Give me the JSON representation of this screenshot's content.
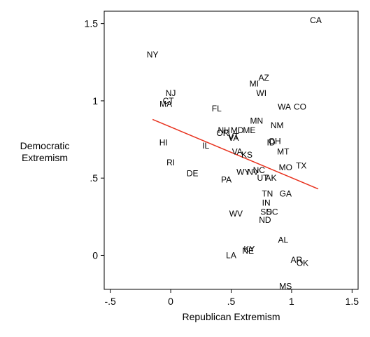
{
  "chart_data": {
    "type": "scatter",
    "xlabel": "Republican Extremism",
    "ylabel": [
      "Democratic",
      "Extremism"
    ],
    "xlim": [
      -0.55,
      1.55
    ],
    "ylim": [
      -0.22,
      1.58
    ],
    "x_ticks": [
      {
        "value": -0.5,
        "label": "-.5"
      },
      {
        "value": 0,
        "label": "0"
      },
      {
        "value": 0.5,
        "label": ".5"
      },
      {
        "value": 1,
        "label": "1"
      },
      {
        "value": 1.5,
        "label": "1.5"
      }
    ],
    "y_ticks": [
      {
        "value": 0,
        "label": "0"
      },
      {
        "value": 0.5,
        "label": ".5"
      },
      {
        "value": 1,
        "label": "1"
      },
      {
        "value": 1.5,
        "label": "1.5"
      }
    ],
    "grid": false,
    "points": [
      {
        "label": "CA",
        "x": 1.2,
        "y": 1.52
      },
      {
        "label": "NY",
        "x": -0.15,
        "y": 1.3
      },
      {
        "label": "AZ",
        "x": 0.77,
        "y": 1.15
      },
      {
        "label": "MI",
        "x": 0.69,
        "y": 1.11
      },
      {
        "label": "WI",
        "x": 0.75,
        "y": 1.05
      },
      {
        "label": "NJ",
        "x": 0,
        "y": 1.05
      },
      {
        "label": "CT",
        "x": -0.02,
        "y": 1.0
      },
      {
        "label": "MA",
        "x": -0.04,
        "y": 0.98
      },
      {
        "label": "WA",
        "x": 0.94,
        "y": 0.96
      },
      {
        "label": "CO",
        "x": 1.07,
        "y": 0.96
      },
      {
        "label": "FL",
        "x": 0.38,
        "y": 0.95
      },
      {
        "label": "MN",
        "x": 0.71,
        "y": 0.87
      },
      {
        "label": "NM",
        "x": 0.88,
        "y": 0.84
      },
      {
        "label": "NH",
        "x": 0.44,
        "y": 0.81
      },
      {
        "label": "MD",
        "x": 0.55,
        "y": 0.81
      },
      {
        "label": "ME",
        "x": 0.65,
        "y": 0.81
      },
      {
        "label": "OR",
        "x": 0.43,
        "y": 0.79
      },
      {
        "label": "VT",
        "x": 0.52,
        "y": 0.77
      },
      {
        "label": "VA",
        "x": 0.52,
        "y": 0.76
      },
      {
        "label": "OH",
        "x": 0.86,
        "y": 0.74
      },
      {
        "label": "ID",
        "x": 0.83,
        "y": 0.73
      },
      {
        "label": "HI",
        "x": -0.06,
        "y": 0.73
      },
      {
        "label": "IL",
        "x": 0.29,
        "y": 0.71
      },
      {
        "label": "MT",
        "x": 0.93,
        "y": 0.67
      },
      {
        "label": "VA",
        "x": 0.55,
        "y": 0.67
      },
      {
        "label": "KS",
        "x": 0.63,
        "y": 0.65
      },
      {
        "label": "RI",
        "x": 0,
        "y": 0.6
      },
      {
        "label": "TX",
        "x": 1.08,
        "y": 0.58
      },
      {
        "label": "MO",
        "x": 0.95,
        "y": 0.57
      },
      {
        "label": "WY",
        "x": 0.6,
        "y": 0.54
      },
      {
        "label": "NV",
        "x": 0.68,
        "y": 0.54
      },
      {
        "label": "NC",
        "x": 0.73,
        "y": 0.55
      },
      {
        "label": "DE",
        "x": 0.18,
        "y": 0.53
      },
      {
        "label": "PA",
        "x": 0.46,
        "y": 0.49
      },
      {
        "label": "UT",
        "x": 0.76,
        "y": 0.5
      },
      {
        "label": "AK",
        "x": 0.83,
        "y": 0.5
      },
      {
        "label": "TN",
        "x": 0.8,
        "y": 0.4
      },
      {
        "label": "GA",
        "x": 0.95,
        "y": 0.4
      },
      {
        "label": "IN",
        "x": 0.79,
        "y": 0.34
      },
      {
        "label": "SD",
        "x": 0.79,
        "y": 0.28
      },
      {
        "label": "SC",
        "x": 0.84,
        "y": 0.28
      },
      {
        "label": "WV",
        "x": 0.54,
        "y": 0.27
      },
      {
        "label": "ND",
        "x": 0.78,
        "y": 0.23
      },
      {
        "label": "AL",
        "x": 0.93,
        "y": 0.1
      },
      {
        "label": "KY",
        "x": 0.65,
        "y": 0.04
      },
      {
        "label": "NE",
        "x": 0.64,
        "y": 0.03
      },
      {
        "label": "LA",
        "x": 0.5,
        "y": 0.0
      },
      {
        "label": "AR",
        "x": 1.04,
        "y": -0.03
      },
      {
        "label": "OK",
        "x": 1.09,
        "y": -0.05
      },
      {
        "label": "MS",
        "x": 0.95,
        "y": -0.2
      }
    ],
    "fit_line": {
      "x": [
        -0.15,
        1.22
      ],
      "y": [
        0.88,
        0.43
      ],
      "color": "#e8321e"
    }
  }
}
